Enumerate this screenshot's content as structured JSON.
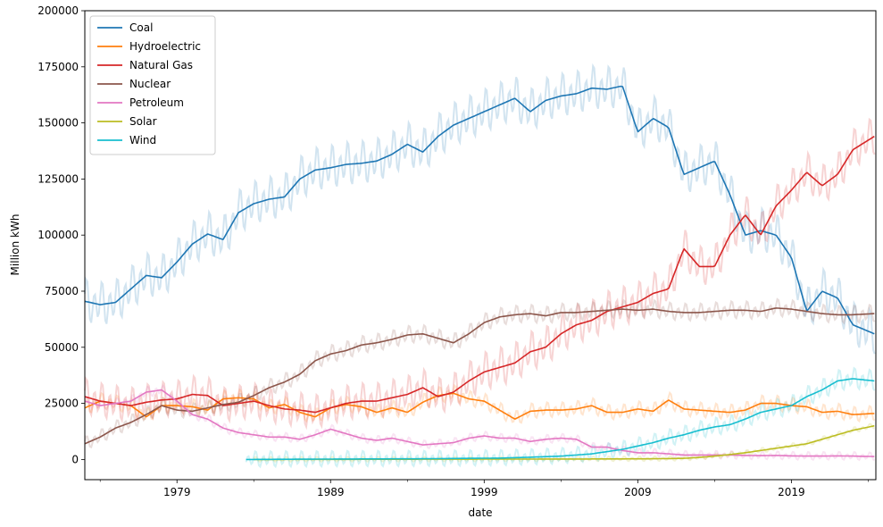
{
  "chart_data": {
    "type": "line",
    "xlabel": "date",
    "ylabel": "Million kWh",
    "xlim": [
      1973.0,
      2024.5
    ],
    "ylim": [
      -9000,
      200000
    ],
    "x_ticks": [
      1979,
      1989,
      1999,
      2009,
      2019
    ],
    "y_ticks": [
      0,
      25000,
      50000,
      75000,
      100000,
      125000,
      150000,
      175000,
      200000
    ],
    "y_tick_labels": [
      "0",
      "25000",
      "50000",
      "75000",
      "100000",
      "125000",
      "150000",
      "175000",
      "200000"
    ],
    "legend_position": "upper-left",
    "grid": false,
    "series": [
      {
        "name": "Coal",
        "color": "#1f77b4",
        "smoothed_x": [
          1973,
          1974,
          1975,
          1976,
          1977,
          1978,
          1979,
          1980,
          1981,
          1982,
          1983,
          1984,
          1985,
          1986,
          1987,
          1988,
          1989,
          1990,
          1991,
          1992,
          1993,
          1994,
          1995,
          1996,
          1997,
          1998,
          1999,
          2000,
          2001,
          2002,
          2003,
          2004,
          2005,
          2006,
          2007,
          2008,
          2009,
          2010,
          2011,
          2012,
          2013,
          2014,
          2015,
          2016,
          2017,
          2018,
          2019,
          2020,
          2021,
          2022,
          2023,
          2024.4
        ],
        "smoothed_y": [
          70500,
          69000,
          70000,
          76000,
          82000,
          81000,
          88000,
          96000,
          100500,
          98000,
          110000,
          114000,
          116000,
          117000,
          125000,
          129000,
          130000,
          131500,
          132000,
          133000,
          136000,
          140500,
          137000,
          144000,
          149000,
          152000,
          155000,
          158000,
          161000,
          155000,
          160000,
          162000,
          163000,
          165500,
          165000,
          166500,
          146000,
          152000,
          148000,
          127000,
          130000,
          133000,
          118000,
          100000,
          102000,
          100000,
          90000,
          66000,
          75000,
          72000,
          60000,
          56000
        ],
        "raw_amplitude": 10000
      },
      {
        "name": "Hydroelectric",
        "color": "#ff7f0e",
        "smoothed_x": [
          1973,
          1974,
          1975,
          1976,
          1977,
          1978,
          1979,
          1980,
          1981,
          1982,
          1983,
          1984,
          1985,
          1986,
          1987,
          1988,
          1989,
          1990,
          1991,
          1992,
          1993,
          1994,
          1995,
          1996,
          1997,
          1998,
          1999,
          2000,
          2001,
          2002,
          2003,
          2004,
          2005,
          2006,
          2007,
          2008,
          2009,
          2010,
          2011,
          2012,
          2013,
          2014,
          2015,
          2016,
          2017,
          2018,
          2019,
          2020,
          2021,
          2022,
          2023,
          2024.4
        ],
        "smoothed_y": [
          23000,
          26000,
          25000,
          24000,
          19000,
          24000,
          24000,
          23500,
          22000,
          27000,
          27500,
          27000,
          23000,
          24500,
          21000,
          19000,
          23000,
          24500,
          23500,
          21000,
          23000,
          21000,
          25500,
          28500,
          29500,
          27000,
          26000,
          22000,
          18000,
          21500,
          22000,
          22000,
          22500,
          24000,
          21000,
          21000,
          22500,
          21500,
          26500,
          22500,
          22000,
          21500,
          21000,
          22000,
          25000,
          25000,
          24000,
          23500,
          21000,
          21500,
          20000,
          20500
        ],
        "raw_amplitude": 4000
      },
      {
        "name": "Natural Gas",
        "color": "#d62728",
        "smoothed_x": [
          1973,
          1974,
          1975,
          1976,
          1977,
          1978,
          1979,
          1980,
          1981,
          1982,
          1983,
          1984,
          1985,
          1986,
          1987,
          1988,
          1989,
          1990,
          1991,
          1992,
          1993,
          1994,
          1995,
          1996,
          1997,
          1998,
          1999,
          2000,
          2001,
          2002,
          2003,
          2004,
          2005,
          2006,
          2007,
          2008,
          2009,
          2010,
          2011,
          2012,
          2013,
          2014,
          2015,
          2016,
          2017,
          2018,
          2019,
          2020,
          2021,
          2022,
          2023,
          2024.4
        ],
        "smoothed_y": [
          28000,
          26000,
          25000,
          24000,
          25500,
          26500,
          27000,
          29000,
          28500,
          24000,
          25000,
          26000,
          24000,
          22500,
          22000,
          21000,
          23000,
          25000,
          26000,
          26000,
          27500,
          29000,
          32000,
          28000,
          30000,
          35000,
          39000,
          41000,
          43000,
          48000,
          50000,
          56000,
          60000,
          62000,
          66000,
          68000,
          70000,
          74000,
          76000,
          94000,
          86000,
          86000,
          100000,
          109000,
          100000,
          113000,
          120000,
          128000,
          122000,
          127000,
          138000,
          144000
        ],
        "raw_amplitude": 9000
      },
      {
        "name": "Nuclear",
        "color": "#8c564b",
        "smoothed_x": [
          1973,
          1974,
          1975,
          1976,
          1977,
          1978,
          1979,
          1980,
          1981,
          1982,
          1983,
          1984,
          1985,
          1986,
          1987,
          1988,
          1989,
          1990,
          1991,
          1992,
          1993,
          1994,
          1995,
          1996,
          1997,
          1998,
          1999,
          2000,
          2001,
          2002,
          2003,
          2004,
          2005,
          2006,
          2007,
          2008,
          2009,
          2010,
          2011,
          2012,
          2013,
          2014,
          2015,
          2016,
          2017,
          2018,
          2019,
          2020,
          2021,
          2022,
          2023,
          2024.4
        ],
        "smoothed_y": [
          7000,
          10000,
          14000,
          16500,
          20000,
          24000,
          22000,
          21500,
          23000,
          24500,
          25500,
          28500,
          32000,
          34500,
          38000,
          44000,
          47000,
          48500,
          51000,
          52000,
          53500,
          55500,
          56000,
          54000,
          52000,
          56000,
          61000,
          63500,
          64500,
          65000,
          64000,
          65500,
          65500,
          66000,
          66500,
          67000,
          66500,
          67000,
          66000,
          65500,
          65500,
          66000,
          66500,
          66500,
          66000,
          67500,
          67000,
          66000,
          65000,
          64500,
          64500,
          65000
        ],
        "raw_amplitude": 4000
      },
      {
        "name": "Petroleum",
        "color": "#e377c2",
        "smoothed_x": [
          1973,
          1974,
          1975,
          1976,
          1977,
          1978,
          1979,
          1980,
          1981,
          1982,
          1983,
          1984,
          1985,
          1986,
          1987,
          1988,
          1989,
          1990,
          1991,
          1992,
          1993,
          1994,
          1995,
          1996,
          1997,
          1998,
          1999,
          2000,
          2001,
          2002,
          2003,
          2004,
          2005,
          2006,
          2007,
          2008,
          2009,
          2010,
          2011,
          2012,
          2013,
          2014,
          2015,
          2016,
          2017,
          2018,
          2019,
          2020,
          2021,
          2022,
          2023,
          2024.4
        ],
        "smoothed_y": [
          26000,
          24000,
          25000,
          26000,
          30000,
          31000,
          26000,
          20000,
          18000,
          14000,
          12000,
          11000,
          10000,
          10000,
          9000,
          11000,
          13500,
          11500,
          9500,
          8500,
          9500,
          8000,
          6500,
          7000,
          7500,
          9500,
          10500,
          9500,
          9500,
          8000,
          9000,
          9500,
          9000,
          5500,
          5500,
          4000,
          3000,
          3000,
          2500,
          2000,
          2000,
          2000,
          2000,
          1800,
          1700,
          1800,
          1600,
          1500,
          1500,
          1600,
          1500,
          1300
        ],
        "raw_amplitude": 2500
      },
      {
        "name": "Solar",
        "color": "#bcbd22",
        "smoothed_x": [
          1984,
          1990,
          1995,
          2000,
          2005,
          2008,
          2010,
          2012,
          2013,
          2014,
          2015,
          2016,
          2017,
          2018,
          2019,
          2020,
          2021,
          2022,
          2023,
          2024.4
        ],
        "smoothed_y": [
          0,
          50,
          100,
          150,
          200,
          250,
          300,
          500,
          900,
          1500,
          2200,
          3000,
          4000,
          5000,
          6000,
          7000,
          9000,
          11000,
          13000,
          15000
        ],
        "raw_amplitude": 1500
      },
      {
        "name": "Wind",
        "color": "#17becf",
        "smoothed_x": [
          1983.5,
          1990,
          1995,
          1998,
          2000,
          2002,
          2004,
          2006,
          2008,
          2009,
          2010,
          2011,
          2012,
          2013,
          2014,
          2015,
          2016,
          2017,
          2018,
          2019,
          2020,
          2021,
          2022,
          2023,
          2024.4
        ],
        "smoothed_y": [
          0,
          200,
          300,
          500,
          600,
          1000,
          1500,
          2500,
          4500,
          6000,
          7500,
          9500,
          11000,
          13000,
          14500,
          15500,
          18000,
          21000,
          22500,
          24000,
          28000,
          31000,
          35000,
          36000,
          35000
        ],
        "raw_amplitude": 5000
      }
    ]
  }
}
